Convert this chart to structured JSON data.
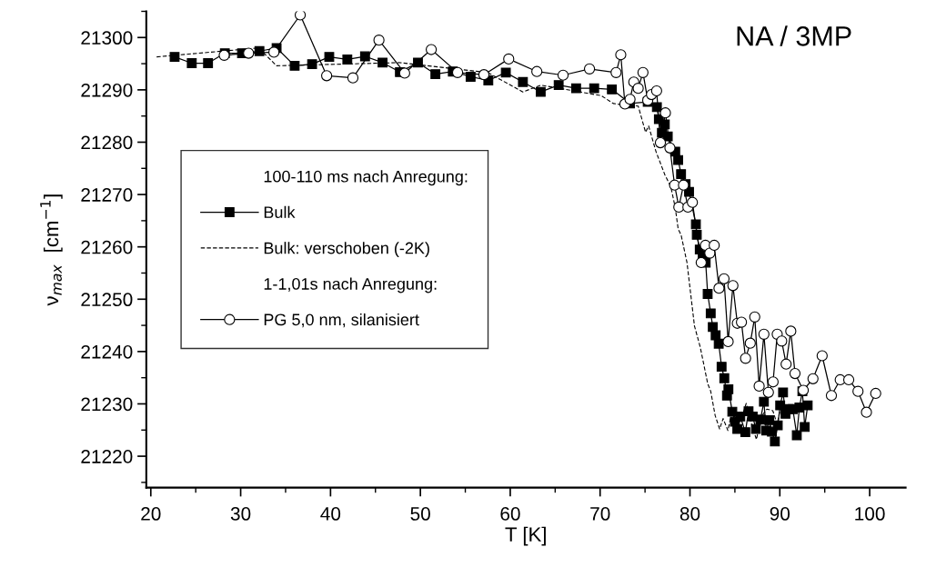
{
  "chart_data": {
    "type": "line",
    "title": "NA / 3MP",
    "xlabel": "T [K]",
    "ylabel": "ν$_{max}$  [cm$^{−1}$]",
    "xlim": [
      19.5,
      104
    ],
    "ylim": [
      21214,
      21305
    ],
    "xticks": [
      20,
      {
        "value": 25,
        "label": null
      },
      30,
      {
        "value": 35,
        "label": null
      },
      40,
      {
        "value": 45,
        "label": null
      },
      50,
      {
        "value": 55,
        "label": null
      },
      60,
      {
        "value": 65,
        "label": null
      },
      70,
      {
        "value": 75,
        "label": null
      },
      80,
      {
        "value": 85,
        "label": null
      },
      90,
      {
        "value": 95,
        "label": null
      },
      100
    ],
    "yticks": [
      {
        "value": 21215,
        "label": null
      },
      21220,
      {
        "value": 21225,
        "label": null
      },
      21230,
      {
        "value": 21235,
        "label": null
      },
      21240,
      {
        "value": 21245,
        "label": null
      },
      21250,
      {
        "value": 21255,
        "label": null
      },
      21260,
      {
        "value": 21265,
        "label": null
      },
      21270,
      {
        "value": 21275,
        "label": null
      },
      21280,
      {
        "value": 21285,
        "label": null
      },
      21290,
      {
        "value": 21295,
        "label": null
      },
      21300,
      {
        "value": 21305,
        "label": null
      }
    ],
    "grid": false,
    "legend": "left",
    "annotations": [
      "100-110 ms nach Anregung:",
      "1-1,01s nach Anregung:"
    ],
    "series": [
      {
        "name": "Bulk",
        "color": "#000000",
        "marker": "square",
        "line_style": "solid",
        "x": [
          22.65,
          24.56,
          26.37,
          28.24,
          30.15,
          32.09,
          34.0,
          36.01,
          37.95,
          39.86,
          41.87,
          43.84,
          45.79,
          47.72,
          49.73,
          51.67,
          53.61,
          55.59,
          57.56,
          59.51,
          61.41,
          63.39,
          65.39,
          67.33,
          69.34,
          71.31,
          73.33,
          75.3,
          76.32,
          76.54,
          76.88,
          77.2,
          77.53,
          78.36,
          78.69,
          79.01,
          79.51,
          79.9,
          80.66,
          80.76,
          81.09,
          81.42,
          81.75,
          81.97,
          82.31,
          82.54,
          82.86,
          83.2,
          83.52,
          83.82,
          84.12,
          84.28,
          84.71,
          85.0,
          85.27,
          85.6,
          86.16,
          86.52,
          86.98,
          87.34,
          87.84,
          88.23,
          88.49,
          88.83,
          89.12,
          89.45,
          89.77,
          90.04,
          90.36,
          90.63,
          90.96,
          91.45,
          91.89,
          92.18,
          92.51,
          92.77,
          93.1
        ],
        "values": [
          21296.3,
          21295.1,
          21295.1,
          21297.0,
          21297.0,
          21297.4,
          21298.0,
          21294.6,
          21294.9,
          21296.3,
          21295.8,
          21296.4,
          21295.2,
          21293.4,
          21295.2,
          21293.0,
          21293.5,
          21292.5,
          21291.8,
          21293.3,
          21291.5,
          21289.6,
          21290.9,
          21290.3,
          21290.3,
          21290.1,
          21287.4,
          21287.7,
          21286.7,
          21284.4,
          21281.8,
          21283.4,
          21281.1,
          21278.2,
          21276.6,
          21273.9,
          21272.0,
          21270.5,
          21264.3,
          21262.3,
          21259.5,
          21258.3,
          21257.0,
          21251.0,
          21247.3,
          21244.7,
          21243.1,
          21241.5,
          21237.1,
          21234.9,
          21231.6,
          21232.8,
          21228.5,
          21226.6,
          21225.2,
          21227.6,
          21224.6,
          21228.6,
          21227.6,
          21225.2,
          21227.0,
          21230.4,
          21224.9,
          21226.9,
          21224.7,
          21222.8,
          21225.9,
          21229.7,
          21232.2,
          21228.1,
          21229.0,
          21229.0,
          21224.0,
          21229.3,
          21232.4,
          21225.6,
          21229.7
        ]
      },
      {
        "name": "Bulk: verschoben (-2K)",
        "color": "#000000",
        "marker": "none",
        "line_style": "dashed",
        "x": [
          20.65,
          32.0,
          34.0,
          47.7,
          57.5,
          61.4,
          63.4,
          70.13,
          71.45,
          72.6,
          74.24,
          75.06,
          75.4,
          76.22,
          77.2,
          77.87,
          78.36,
          78.69,
          79.01,
          79.67,
          80.5,
          81.15,
          81.97,
          82.31,
          82.8,
          83.3,
          83.69,
          84.22,
          84.61,
          85.6,
          86.26,
          86.91,
          87.4,
          87.9,
          88.56,
          89.22,
          89.71,
          90.21,
          90.7,
          91.35
        ],
        "values": [
          21296.3,
          21298.0,
          21294.6,
          21295.2,
          21293.3,
          21289.6,
          21290.9,
          21288.9,
          21287.4,
          21287.1,
          21286.9,
          21281.9,
          21283.1,
          21278.2,
          21273.8,
          21271.5,
          21267.5,
          21263.4,
          21262.3,
          21257.0,
          21244.9,
          21240.8,
          21233.9,
          21232.4,
          21227.8,
          21225.2,
          21227.2,
          21224.9,
          21228.1,
          21226.6,
          21230.1,
          21225.8,
          21223.2,
          21227.5,
          21229.0,
          21228.7,
          21226.1,
          21230.4,
          21227.8,
          21229.3
        ]
      },
      {
        "name": "PG 5,0 nm, silanisiert",
        "color": "#000000",
        "marker": "circle",
        "line_style": "solid",
        "x": [
          28.17,
          30.88,
          33.7,
          36.63,
          39.57,
          42.49,
          45.39,
          48.25,
          51.21,
          54.14,
          57.07,
          59.83,
          62.96,
          65.88,
          68.82,
          71.78,
          72.3,
          72.76,
          73.33,
          73.75,
          74.24,
          74.77,
          75.3,
          75.72,
          76.29,
          76.71,
          77.27,
          77.77,
          78.29,
          78.76,
          79.28,
          79.77,
          80.27,
          81.25,
          81.72,
          82.21,
          82.7,
          83.23,
          83.79,
          84.25,
          84.78,
          85.27,
          85.73,
          86.19,
          86.71,
          87.21,
          87.7,
          88.23,
          88.73,
          89.25,
          89.71,
          90.21,
          90.7,
          91.22,
          91.69,
          92.61,
          93.69,
          94.71,
          95.74,
          96.72,
          97.67,
          98.7,
          99.64,
          100.67
        ],
        "values": [
          21296.6,
          21297.0,
          21297.2,
          21304.3,
          21292.7,
          21292.3,
          21299.5,
          21293.2,
          21297.7,
          21293.3,
          21292.9,
          21295.9,
          21293.5,
          21292.8,
          21294.0,
          21293.3,
          21296.7,
          21287.3,
          21288.2,
          21291.5,
          21290.3,
          21293.3,
          21288.0,
          21289.1,
          21289.8,
          21279.9,
          21285.6,
          21278.9,
          21271.8,
          21267.6,
          21271.8,
          21267.6,
          21268.5,
          21257.0,
          21260.3,
          21258.8,
          21260.3,
          21252.1,
          21253.9,
          21241.9,
          21252.6,
          21245.4,
          21245.6,
          21238.7,
          21241.6,
          21246.6,
          21233.4,
          21243.3,
          21232.2,
          21234.2,
          21243.3,
          21242.0,
          21237.6,
          21243.9,
          21235.8,
          21232.6,
          21234.8,
          21239.2,
          21231.6,
          21234.6,
          21234.6,
          21232.4,
          21228.4,
          21232.0
        ]
      }
    ]
  }
}
